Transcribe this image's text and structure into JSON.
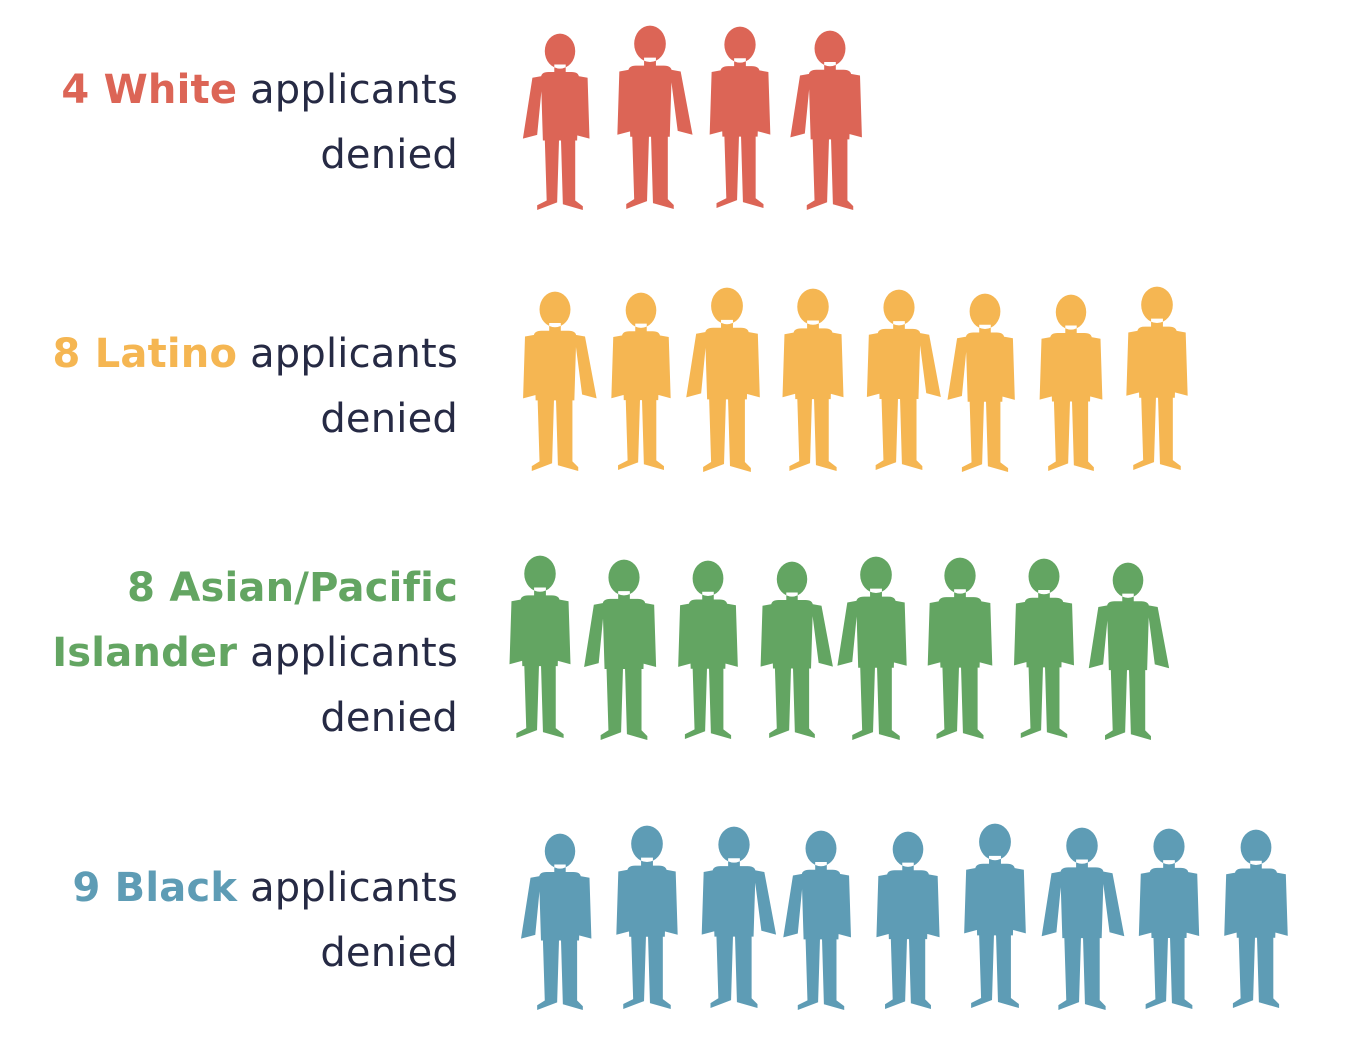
{
  "chart_data": {
    "type": "pictogram",
    "groups": [
      {
        "count": 4,
        "group_label": "White",
        "label_lines": [
          "applicants",
          "denied"
        ],
        "color": "#dc6556"
      },
      {
        "count": 8,
        "group_label": "Latino",
        "label_lines": [
          "applicants",
          "denied"
        ],
        "color": "#f5b652"
      },
      {
        "count": 8,
        "group_label": "Asian/Pacific Islander",
        "label_lines": [
          "applicants",
          "denied"
        ],
        "color": "#63a562"
      },
      {
        "count": 9,
        "group_label": "Black",
        "label_lines": [
          "applicants",
          "denied"
        ],
        "color": "#5e9cb5"
      }
    ],
    "text_color": "#262a44"
  },
  "rows": [
    {
      "num": "4",
      "hl": "White",
      "rest": " applicants",
      "line2": "denied"
    },
    {
      "num": "8",
      "hl": "Latino",
      "rest": " applicants",
      "line2": "denied"
    },
    {
      "num": "8",
      "hl": "Asian/Pacific",
      "hl2": "Islander",
      "rest": " applicants",
      "line3": "denied"
    },
    {
      "num": "9",
      "hl": "Black",
      "rest": " applicants",
      "line2": "denied"
    }
  ]
}
